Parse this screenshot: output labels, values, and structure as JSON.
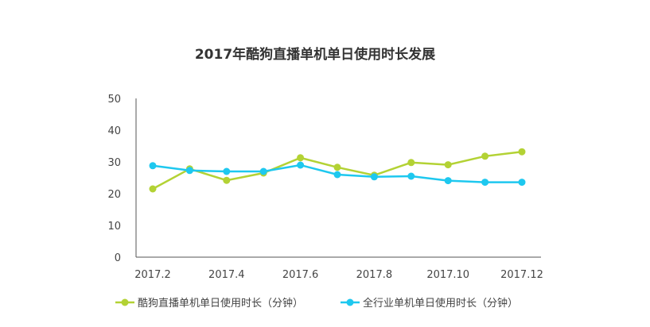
{
  "chart_data": {
    "type": "line",
    "title": "2017年酷狗直播单机单日使用时长发展",
    "xlabel": "",
    "ylabel": "",
    "x": [
      "2017.2",
      "2017.3",
      "2017.4",
      "2017.5",
      "2017.6",
      "2017.7",
      "2017.8",
      "2017.9",
      "2017.10",
      "2017.11",
      "2017.12"
    ],
    "xtick_labels": [
      "2017.2",
      "2017.4",
      "2017.6",
      "2017.8",
      "2017.10",
      "2017.12"
    ],
    "ylim": [
      0,
      50
    ],
    "yticks": [
      0,
      10,
      20,
      30,
      40,
      50
    ],
    "grid": false,
    "legend_position": "bottom",
    "series": [
      {
        "name": "酷狗直播单机单日使用时长（分钟）",
        "color": "#b3d234",
        "values": [
          21.5,
          27.8,
          24.2,
          26.5,
          31.3,
          28.3,
          25.8,
          29.8,
          29.1,
          31.8,
          33.2
        ]
      },
      {
        "name": "全行业单机单日使用时长（分钟）",
        "color": "#1ec8ef",
        "values": [
          28.8,
          27.3,
          27.0,
          27.0,
          29.0,
          26.0,
          25.3,
          25.5,
          24.1,
          23.6,
          23.6
        ]
      }
    ]
  }
}
